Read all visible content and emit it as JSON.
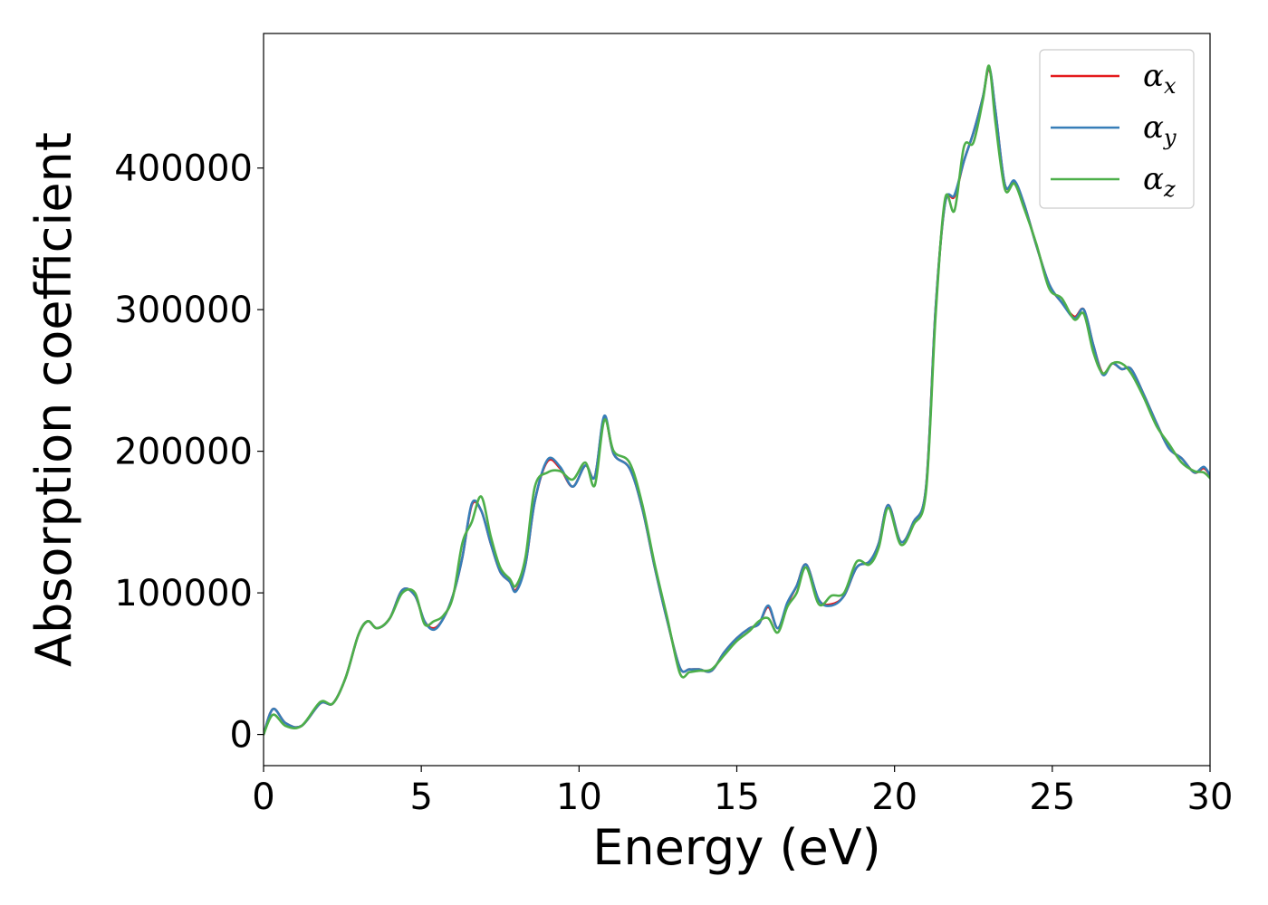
{
  "chart_data": {
    "type": "line",
    "title": "",
    "xlabel": "Energy (eV)",
    "ylabel": "Absorption coefficient",
    "xlim": [
      0,
      30
    ],
    "ylim": [
      -22000,
      495000
    ],
    "xticks": [
      0,
      5,
      10,
      15,
      20,
      25,
      30
    ],
    "xtick_labels": [
      "0",
      "5",
      "10",
      "15",
      "20",
      "25",
      "30"
    ],
    "yticks": [
      0,
      100000,
      200000,
      300000,
      400000
    ],
    "ytick_labels": [
      "0",
      "100000",
      "200000",
      "300000",
      "400000"
    ],
    "grid": false,
    "legend_position": "top-right",
    "x": [
      0,
      0.3,
      0.7,
      1.2,
      1.8,
      2.2,
      2.6,
      3.0,
      3.3,
      3.6,
      4.0,
      4.4,
      4.8,
      5.1,
      5.4,
      5.7,
      6.0,
      6.3,
      6.6,
      6.9,
      7.2,
      7.5,
      7.8,
      8.0,
      8.3,
      8.6,
      9.0,
      9.4,
      9.8,
      10.2,
      10.5,
      10.8,
      11.1,
      11.6,
      12.0,
      12.4,
      12.8,
      13.2,
      13.5,
      13.8,
      14.2,
      14.6,
      15.0,
      15.4,
      15.7,
      16.0,
      16.3,
      16.6,
      16.9,
      17.2,
      17.6,
      18.0,
      18.4,
      18.8,
      19.2,
      19.5,
      19.8,
      20.2,
      20.6,
      21.0,
      21.3,
      21.6,
      21.9,
      22.2,
      22.5,
      22.8,
      23.0,
      23.2,
      23.5,
      23.8,
      24.1,
      24.5,
      24.9,
      25.3,
      25.7,
      26.0,
      26.3,
      26.6,
      26.9,
      27.2,
      27.5,
      27.9,
      28.3,
      28.7,
      29.1,
      29.5,
      29.8,
      30.0
    ],
    "series": [
      {
        "name": "x",
        "color": "#e41a1c",
        "values": [
          0,
          18000,
          8000,
          6000,
          22000,
          22000,
          40000,
          70000,
          80000,
          75000,
          82000,
          102000,
          98000,
          80000,
          75000,
          82000,
          98000,
          125000,
          162000,
          158000,
          135000,
          115000,
          108000,
          102000,
          120000,
          165000,
          193000,
          188000,
          175000,
          190000,
          182000,
          224000,
          198000,
          188000,
          160000,
          118000,
          80000,
          47000,
          46000,
          46000,
          45000,
          58000,
          68000,
          75000,
          78000,
          90000,
          75000,
          92000,
          105000,
          120000,
          95000,
          92000,
          98000,
          118000,
          122000,
          135000,
          162000,
          136000,
          150000,
          175000,
          300000,
          375000,
          380000,
          405000,
          425000,
          450000,
          470000,
          440000,
          388000,
          390000,
          375000,
          345000,
          318000,
          305000,
          295000,
          300000,
          275000,
          255000,
          262000,
          258000,
          258000,
          240000,
          220000,
          202000,
          195000,
          185000,
          188000,
          183000
        ]
      },
      {
        "name": "y",
        "color": "#377eb8",
        "values": [
          0,
          18000,
          8000,
          6000,
          22000,
          22000,
          40000,
          70000,
          80000,
          75000,
          82000,
          102000,
          98000,
          80000,
          74000,
          82000,
          98000,
          125000,
          163000,
          158000,
          135000,
          115000,
          108000,
          101000,
          120000,
          165000,
          194000,
          189000,
          175000,
          190000,
          182000,
          225000,
          198000,
          188000,
          160000,
          118000,
          80000,
          47000,
          46000,
          46000,
          45000,
          58000,
          68000,
          75000,
          78000,
          91000,
          75000,
          93000,
          105000,
          120000,
          95000,
          91000,
          98000,
          118000,
          122000,
          135000,
          162000,
          136000,
          150000,
          175000,
          300000,
          375000,
          381000,
          405000,
          425000,
          450000,
          471000,
          440000,
          388000,
          391000,
          375000,
          345000,
          318000,
          305000,
          294000,
          300000,
          275000,
          254000,
          262000,
          258000,
          258000,
          240000,
          220000,
          202000,
          195000,
          185000,
          189000,
          183000
        ]
      },
      {
        "name": "z",
        "color": "#4daf4a",
        "values": [
          0,
          14000,
          6000,
          6000,
          23000,
          22000,
          40000,
          70000,
          80000,
          75000,
          82000,
          100000,
          100000,
          78000,
          80000,
          84000,
          97000,
          135000,
          150000,
          168000,
          140000,
          118000,
          110000,
          105000,
          125000,
          175000,
          185000,
          186000,
          180000,
          192000,
          176000,
          222000,
          200000,
          192000,
          163000,
          120000,
          82000,
          43000,
          44000,
          45000,
          46000,
          56000,
          66000,
          73000,
          80000,
          82000,
          72000,
          90000,
          100000,
          118000,
          92000,
          98000,
          100000,
          122000,
          120000,
          132000,
          160000,
          134000,
          148000,
          172000,
          295000,
          378000,
          370000,
          415000,
          418000,
          448000,
          472000,
          432000,
          385000,
          389000,
          372000,
          346000,
          315000,
          308000,
          293000,
          297000,
          270000,
          255000,
          262000,
          262000,
          255000,
          238000,
          218000,
          205000,
          192000,
          186000,
          185000,
          181000
        ]
      }
    ]
  }
}
